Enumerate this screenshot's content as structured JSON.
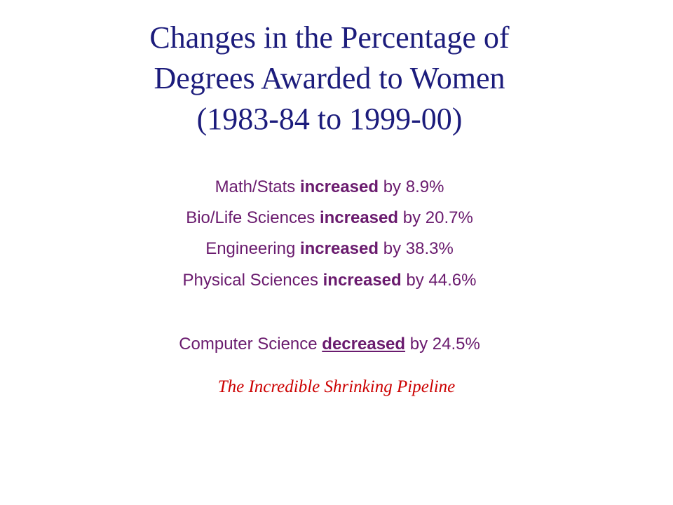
{
  "title": [
    "Changes in the Percentage of",
    "Degrees Awarded to Women",
    "(1983-84 to 1999-00)"
  ],
  "items": [
    {
      "field": "Math/Stats",
      "change": "increased",
      "connector": "by",
      "amount": "8.9%"
    },
    {
      "field": "Bio/Life Sciences",
      "change": "increased",
      "connector": "by",
      "amount": "20.7%"
    },
    {
      "field": "Engineering",
      "change": "increased",
      "connector": "by",
      "amount": "38.3%"
    },
    {
      "field": "Physical Sciences",
      "change": "increased",
      "connector": "by",
      "amount": "44.6%"
    },
    {
      "field": "Computer Science",
      "change": "decreased",
      "connector": "by",
      "amount": "24.5%"
    }
  ],
  "caption": "The Incredible Shrinking Pipeline"
}
